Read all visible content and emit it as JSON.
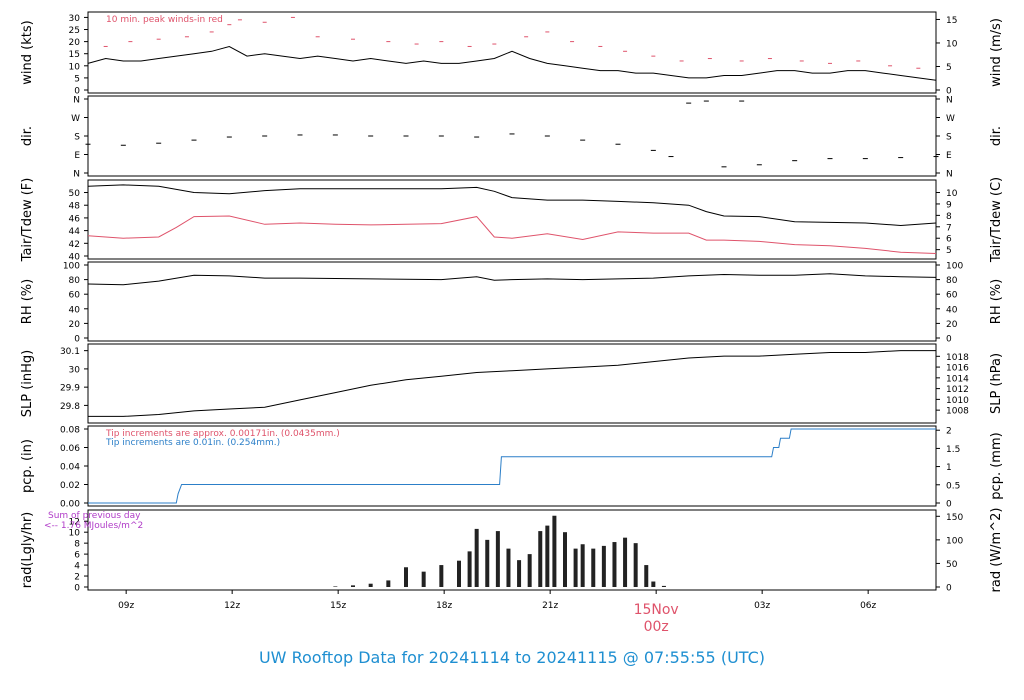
{
  "colors": {
    "wind_peak": "#df536b",
    "tdew": "#df536b",
    "pcp_mm": "#df536b",
    "pcp_in": "#2c7fc8",
    "rad_note": "#b03cc8",
    "date_mark": "#df536b",
    "footer": "#1f8fd1"
  },
  "footer": {
    "title": "UW Rooftop Data for 20241114  to  20241115 @ 07:55:55  (UTC)"
  },
  "chart_data": {
    "type": "line",
    "x_unit": "hours since 07:55 UTC 20241114",
    "x_range": [
      0,
      24
    ],
    "time_ticks": [
      {
        "x": 1.08,
        "label": "09z"
      },
      {
        "x": 4.08,
        "label": "12z"
      },
      {
        "x": 7.08,
        "label": "15z"
      },
      {
        "x": 10.08,
        "label": "18z"
      },
      {
        "x": 13.08,
        "label": "21z"
      },
      {
        "x": 16.08,
        "label": "15Nov",
        "sub": "00z"
      },
      {
        "x": 19.08,
        "label": "03z"
      },
      {
        "x": 22.08,
        "label": "06z"
      }
    ],
    "panels": [
      {
        "id": "wind",
        "ylabel_left": "wind (kts)",
        "ylabel_right": "wind (m/s)",
        "ylim": [
          0,
          31
        ],
        "left_ticks": [
          0,
          5,
          10,
          15,
          20,
          25,
          30
        ],
        "right_ticks": [
          {
            "v": 0,
            "label": "0"
          },
          {
            "v": 9.72,
            "label": "5"
          },
          {
            "v": 19.44,
            "label": "10"
          },
          {
            "v": 29.16,
            "label": "15"
          }
        ],
        "annotation": "10 min. peak winds-in red",
        "series": [
          {
            "name": "wind",
            "x": [
              0,
              0.5,
              1,
              1.5,
              2,
              2.5,
              3,
              3.5,
              4,
              4.5,
              5,
              5.5,
              6,
              6.5,
              7,
              7.5,
              8,
              8.5,
              9,
              9.5,
              10,
              10.5,
              11,
              11.5,
              12,
              12.5,
              13,
              13.5,
              14,
              14.5,
              15,
              15.5,
              16,
              16.5,
              17,
              17.5,
              18,
              18.5,
              19,
              19.5,
              20,
              20.5,
              21,
              21.5,
              22,
              22.5,
              23,
              23.5,
              24
            ],
            "values": [
              11,
              13,
              12,
              12,
              13,
              14,
              15,
              16,
              18,
              14,
              15,
              14,
              13,
              14,
              13,
              12,
              13,
              12,
              11,
              12,
              11,
              11,
              12,
              13,
              16,
              13,
              11,
              10,
              9,
              8,
              8,
              7,
              7,
              6,
              5,
              5,
              6,
              6,
              7,
              8,
              8,
              7,
              7,
              8,
              8,
              7,
              6,
              5,
              4
            ]
          },
          {
            "name": "peak",
            "x": [
              0.5,
              1.2,
              2.0,
              2.8,
              3.5,
              4.0,
              4.3,
              5.0,
              5.8,
              6.5,
              7.5,
              8.5,
              9.3,
              10.0,
              10.8,
              11.5,
              12.4,
              13.0,
              13.7,
              14.5,
              15.2,
              16.0,
              16.8,
              17.6,
              18.5,
              19.3,
              20.2,
              21.0,
              21.8,
              22.7,
              23.5
            ],
            "values": [
              18,
              20,
              21,
              22,
              24,
              27,
              29,
              28,
              30,
              22,
              21,
              20,
              19,
              20,
              18,
              19,
              22,
              24,
              20,
              18,
              16,
              14,
              12,
              13,
              12,
              13,
              12,
              11,
              12,
              10,
              9
            ]
          }
        ]
      },
      {
        "id": "dir",
        "ylabel_left": "dir.",
        "ylabel_right": "dir.",
        "ylim": [
          0,
          360
        ],
        "left_ticks": [
          {
            "v": 0,
            "label": "N"
          },
          {
            "v": 90,
            "label": "E"
          },
          {
            "v": 180,
            "label": "S"
          },
          {
            "v": 270,
            "label": "W"
          },
          {
            "v": 360,
            "label": "N"
          }
        ],
        "series": [
          {
            "name": "direction",
            "x": [
              0,
              1,
              2,
              3,
              4,
              5,
              6,
              7,
              8,
              9,
              10,
              11,
              12,
              13,
              14,
              15,
              16,
              16.5,
              17,
              17.5,
              18,
              18.5,
              19,
              20,
              21,
              22,
              23,
              24
            ],
            "values": [
              140,
              135,
              145,
              160,
              175,
              180,
              185,
              185,
              180,
              180,
              180,
              175,
              190,
              180,
              160,
              140,
              110,
              80,
              340,
              350,
              30,
              350,
              40,
              60,
              70,
              70,
              75,
              80
            ]
          }
        ]
      },
      {
        "id": "temp",
        "ylabel_left": "Tair/Tdew (F)",
        "ylabel_right": "Tair/Tdew (C)",
        "ylim": [
          40,
          51.5
        ],
        "left_ticks": [
          40,
          42,
          44,
          46,
          48,
          50
        ],
        "right_ticks": [
          {
            "v": 41,
            "label": "5"
          },
          {
            "v": 42.8,
            "label": "6"
          },
          {
            "v": 44.6,
            "label": "7"
          },
          {
            "v": 46.4,
            "label": "8"
          },
          {
            "v": 48.2,
            "label": "9"
          },
          {
            "v": 50,
            "label": "10"
          }
        ],
        "series": [
          {
            "name": "Tair",
            "x": [
              0,
              1,
              2,
              3,
              4,
              5,
              6,
              8,
              10,
              11,
              11.5,
              12,
              13,
              14,
              15,
              16,
              17,
              17.5,
              18,
              19,
              20,
              21,
              22,
              23,
              24
            ],
            "values": [
              51,
              51.2,
              51,
              50,
              49.8,
              50.3,
              50.6,
              50.6,
              50.6,
              50.8,
              50.2,
              49.2,
              48.8,
              48.8,
              48.6,
              48.4,
              48,
              47,
              46.3,
              46.2,
              45.4,
              45.3,
              45.2,
              44.8,
              45.2
            ]
          },
          {
            "name": "Tdew",
            "x": [
              0,
              1,
              2,
              2.5,
              3,
              4,
              5,
              6,
              7,
              8,
              9,
              10,
              11,
              11.5,
              12,
              13,
              14,
              15,
              16,
              17,
              17.5,
              18,
              19,
              20,
              21,
              22,
              23,
              24
            ],
            "values": [
              43.2,
              42.8,
              43,
              44.5,
              46.2,
              46.3,
              45,
              45.2,
              45,
              44.9,
              45,
              45.1,
              46.2,
              43,
              42.8,
              43.5,
              42.6,
              43.8,
              43.6,
              43.6,
              42.5,
              42.5,
              42.3,
              41.8,
              41.6,
              41.2,
              40.6,
              40.4
            ]
          }
        ]
      },
      {
        "id": "rh",
        "ylabel_left": "RH (%)",
        "ylabel_right": "RH (%)",
        "ylim": [
          0,
          100
        ],
        "left_ticks": [
          0,
          20,
          40,
          60,
          80,
          100
        ],
        "series": [
          {
            "name": "RH",
            "x": [
              0,
              1,
              2,
              3,
              4,
              5,
              6,
              8,
              10,
              11,
              11.5,
              12,
              13,
              14,
              15,
              16,
              17,
              18,
              19,
              20,
              21,
              22,
              23,
              24
            ],
            "values": [
              74,
              73,
              78,
              86,
              85,
              82,
              82,
              81,
              80,
              84,
              79,
              80,
              81,
              80,
              81,
              82,
              85,
              87,
              86,
              86,
              88,
              85,
              84,
              83
            ]
          }
        ]
      },
      {
        "id": "slp",
        "ylabel_left": "SLP (inHg)",
        "ylabel_right": "SLP (hPa)",
        "ylim": [
          29.72,
          30.12
        ],
        "left_ticks": [
          29.8,
          29.9,
          30.0,
          30.1
        ],
        "right_ticks": [
          {
            "v": 29.774,
            "label": "1008"
          },
          {
            "v": 29.833,
            "label": "1010"
          },
          {
            "v": 29.892,
            "label": "1012"
          },
          {
            "v": 29.951,
            "label": "1014"
          },
          {
            "v": 30.01,
            "label": "1016"
          },
          {
            "v": 30.069,
            "label": "1018"
          }
        ],
        "series": [
          {
            "name": "SLP",
            "x": [
              0,
              1,
              2,
              3,
              4,
              5,
              6,
              7,
              8,
              9,
              10,
              11,
              12,
              13,
              14,
              15,
              16,
              17,
              18,
              19,
              20,
              21,
              22,
              23,
              24
            ],
            "values": [
              29.74,
              29.74,
              29.75,
              29.77,
              29.78,
              29.79,
              29.83,
              29.87,
              29.91,
              29.94,
              29.96,
              29.98,
              29.99,
              30.0,
              30.01,
              30.02,
              30.04,
              30.06,
              30.07,
              30.07,
              30.08,
              30.09,
              30.09,
              30.1,
              30.1
            ]
          }
        ]
      },
      {
        "id": "pcp",
        "ylabel_left": "pcp. (in)",
        "ylabel_right": "pcp. (mm)",
        "ylim": [
          0,
          0.08
        ],
        "left_ticks": [
          0.0,
          0.02,
          0.04,
          0.06,
          0.08
        ],
        "left_tick_labels": [
          "0.00",
          "0.02",
          "0.04",
          "0.06",
          "0.08"
        ],
        "right_ticks": [
          {
            "v": 0,
            "label": "0"
          },
          {
            "v": 0.0197,
            "label": "0.5"
          },
          {
            "v": 0.0394,
            "label": "1"
          },
          {
            "v": 0.059,
            "label": "1.5"
          },
          {
            "v": 0.0787,
            "label": "2"
          }
        ],
        "annotations": [
          "Tip increments are approx. 0.00171in. (0.0435mm.)",
          "Tip increments are 0.01in. (0.254mm.)"
        ],
        "series": [
          {
            "name": "pcp",
            "x": [
              0,
              2.5,
              2.55,
              2.65,
              11.65,
              11.7,
              19.35,
              19.4,
              19.55,
              19.6,
              19.85,
              19.9,
              24
            ],
            "values": [
              0,
              0,
              0.01,
              0.02,
              0.02,
              0.05,
              0.05,
              0.06,
              0.06,
              0.07,
              0.07,
              0.08,
              0.08
            ]
          }
        ]
      },
      {
        "id": "rad",
        "ylabel_left": "rad(Lgly/hr)",
        "ylabel_right": "rad (W/m^2)",
        "ylim": [
          0,
          13.5
        ],
        "left_ticks": [
          0,
          2,
          4,
          6,
          8,
          10,
          12
        ],
        "right_ticks": [
          {
            "v": 0,
            "label": "0"
          },
          {
            "v": 4.3,
            "label": "50"
          },
          {
            "v": 8.6,
            "label": "100"
          },
          {
            "v": 12.9,
            "label": "150"
          }
        ],
        "annotation": "Sum of previous day\n<-- 1.76 MJoules/m^2",
        "series": [
          {
            "name": "radiation",
            "x": [
              7.0,
              7.5,
              8.0,
              8.5,
              9.0,
              9.5,
              10.0,
              10.5,
              10.8,
              11.0,
              11.3,
              11.6,
              11.9,
              12.2,
              12.5,
              12.8,
              13.0,
              13.2,
              13.5,
              13.8,
              14.0,
              14.3,
              14.6,
              14.9,
              15.2,
              15.5,
              15.8,
              16.0,
              16.3
            ],
            "values": [
              0.1,
              0.3,
              0.6,
              1.2,
              3.6,
              2.8,
              4.0,
              4.8,
              6.5,
              10.6,
              8.6,
              10.2,
              7.0,
              4.9,
              6.0,
              10.2,
              11.2,
              13.0,
              10.0,
              7.0,
              7.8,
              7.0,
              7.5,
              8.2,
              9.0,
              8.0,
              4.0,
              1.0,
              0.2
            ]
          }
        ]
      }
    ]
  }
}
